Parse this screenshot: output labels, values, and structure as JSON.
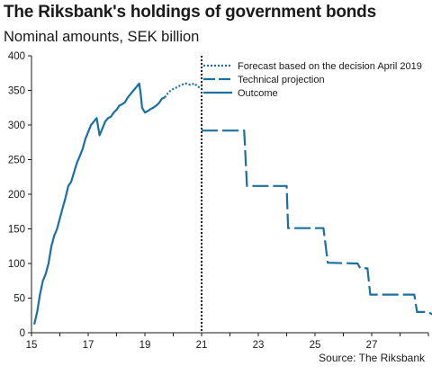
{
  "chart_data": {
    "type": "line",
    "title": "The Riksbank's holdings of government bonds",
    "subtitle": "Nominal amounts, SEK billion",
    "source": "Source: The Riksbank",
    "xlabel": "",
    "ylabel": "",
    "xlim": [
      2015,
      2029
    ],
    "ylim": [
      0,
      400
    ],
    "x_ticks": [
      "15",
      "17",
      "19",
      "21",
      "23",
      "25",
      "27"
    ],
    "x_tick_values": [
      2015,
      2017,
      2019,
      2021,
      2023,
      2025,
      2027
    ],
    "y_ticks": [
      "0",
      "50",
      "100",
      "150",
      "200",
      "250",
      "300",
      "350",
      "400"
    ],
    "y_tick_values": [
      0,
      50,
      100,
      150,
      200,
      250,
      300,
      350,
      400
    ],
    "grid": false,
    "legend_position": "top-right",
    "vline": {
      "x": 2021,
      "style": "dotted"
    },
    "colors": {
      "series": "#1a6fa3",
      "axis": "#1a1a1a",
      "vline": "#1a1a1a"
    },
    "series": [
      {
        "name": "Outcome",
        "style": "solid",
        "points": [
          [
            2015.1,
            12
          ],
          [
            2015.2,
            30
          ],
          [
            2015.3,
            55
          ],
          [
            2015.4,
            75
          ],
          [
            2015.5,
            85
          ],
          [
            2015.6,
            100
          ],
          [
            2015.7,
            125
          ],
          [
            2015.8,
            140
          ],
          [
            2015.9,
            150
          ],
          [
            2016.0,
            165
          ],
          [
            2016.1,
            180
          ],
          [
            2016.2,
            195
          ],
          [
            2016.3,
            212
          ],
          [
            2016.4,
            218
          ],
          [
            2016.5,
            232
          ],
          [
            2016.6,
            245
          ],
          [
            2016.7,
            255
          ],
          [
            2016.8,
            265
          ],
          [
            2016.9,
            280
          ],
          [
            2017.0,
            290
          ],
          [
            2017.1,
            300
          ],
          [
            2017.2,
            305
          ],
          [
            2017.3,
            310
          ],
          [
            2017.4,
            285
          ],
          [
            2017.5,
            295
          ],
          [
            2017.6,
            305
          ],
          [
            2017.7,
            310
          ],
          [
            2017.8,
            312
          ],
          [
            2017.9,
            318
          ],
          [
            2018.0,
            322
          ],
          [
            2018.1,
            328
          ],
          [
            2018.2,
            330
          ],
          [
            2018.3,
            333
          ],
          [
            2018.4,
            340
          ],
          [
            2018.5,
            345
          ],
          [
            2018.6,
            350
          ],
          [
            2018.7,
            355
          ],
          [
            2018.8,
            360
          ],
          [
            2018.85,
            345
          ],
          [
            2018.9,
            325
          ],
          [
            2019.0,
            318
          ],
          [
            2019.1,
            320
          ],
          [
            2019.2,
            323
          ],
          [
            2019.3,
            325
          ],
          [
            2019.4,
            328
          ],
          [
            2019.5,
            332
          ],
          [
            2019.6,
            338
          ],
          [
            2019.7,
            340
          ]
        ]
      },
      {
        "name": "Forecast based on the decision April 2019",
        "style": "dotted",
        "points": [
          [
            2019.7,
            340
          ],
          [
            2019.85,
            348
          ],
          [
            2020.0,
            352
          ],
          [
            2020.15,
            355
          ],
          [
            2020.3,
            358
          ],
          [
            2020.45,
            360
          ],
          [
            2020.6,
            358
          ],
          [
            2020.75,
            360
          ],
          [
            2020.85,
            356
          ],
          [
            2021.0,
            352
          ]
        ]
      },
      {
        "name": "Technical projection",
        "style": "dashed",
        "points": [
          [
            2021.0,
            292
          ],
          [
            2022.5,
            292
          ],
          [
            2022.6,
            212
          ],
          [
            2024.0,
            212
          ],
          [
            2024.05,
            151
          ],
          [
            2025.3,
            151
          ],
          [
            2025.45,
            101
          ],
          [
            2026.5,
            100
          ],
          [
            2026.6,
            93
          ],
          [
            2026.85,
            93
          ],
          [
            2026.95,
            55
          ],
          [
            2028.5,
            55
          ],
          [
            2028.6,
            30
          ],
          [
            2029.0,
            30
          ],
          [
            2029.2,
            25
          ]
        ]
      }
    ]
  }
}
